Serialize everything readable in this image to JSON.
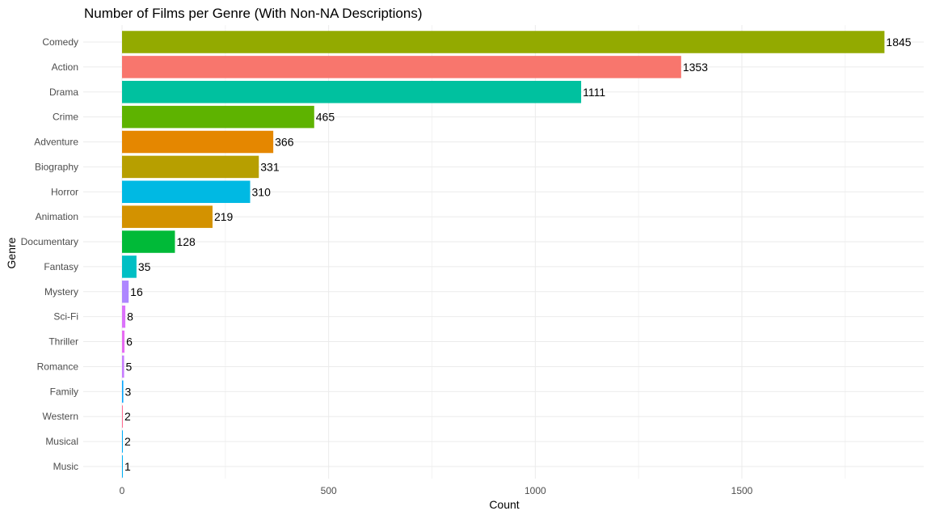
{
  "chart_data": {
    "type": "bar",
    "orientation": "horizontal",
    "title": "Number of Films per Genre (With Non-NA Descriptions)",
    "xlabel": "Count",
    "ylabel": "Genre",
    "xlim": [
      0,
      1900
    ],
    "x_ticks": [
      0,
      500,
      1000,
      1500
    ],
    "x_tick_labels": [
      "0",
      "500",
      "1000",
      "1500"
    ],
    "grid": true,
    "legend": "none",
    "categories": [
      "Comedy",
      "Action",
      "Drama",
      "Crime",
      "Adventure",
      "Biography",
      "Horror",
      "Animation",
      "Documentary",
      "Fantasy",
      "Mystery",
      "Sci-Fi",
      "Thriller",
      "Romance",
      "Family",
      "Western",
      "Musical",
      "Music"
    ],
    "values": [
      1845,
      1353,
      1111,
      465,
      366,
      331,
      310,
      219,
      128,
      35,
      16,
      8,
      6,
      5,
      3,
      2,
      2,
      1
    ],
    "colors": [
      "#93AA00",
      "#F8766D",
      "#00C19F",
      "#5EB300",
      "#E58700",
      "#B79F00",
      "#00B9E3",
      "#D39200",
      "#00BA38",
      "#00BFC4",
      "#AE87FF",
      "#DB72FB",
      "#E76BF3",
      "#C77CFF",
      "#00A5FF",
      "#FF6C91",
      "#00ADFA",
      "#00B0F6"
    ]
  }
}
